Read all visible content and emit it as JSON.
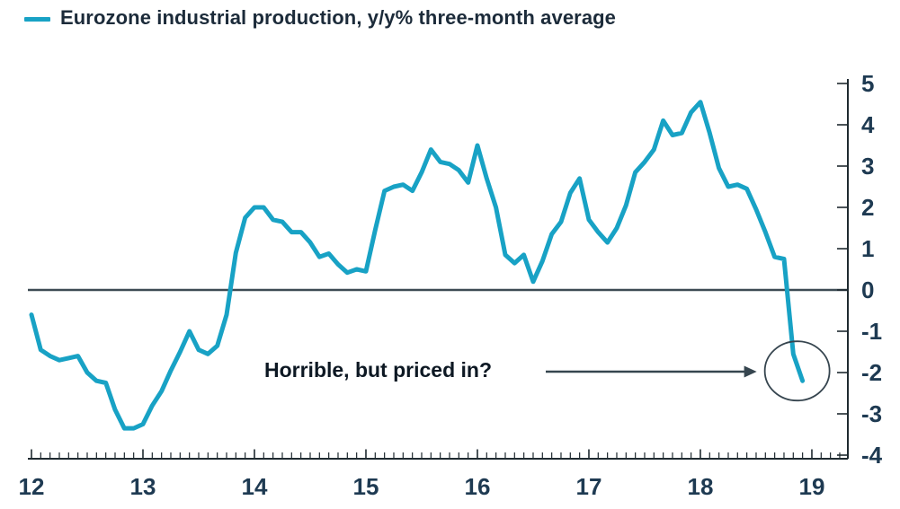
{
  "legend": {
    "label": "Eurozone industrial production, y/y% three-month average",
    "series_color": "#18a2c5"
  },
  "annotation": {
    "text": "Horrible, but priced in?"
  },
  "colors": {
    "series": "#18a2c5",
    "axis": "#1f2a30",
    "zero_line": "#3d4b54",
    "arrow_and_circle": "#36454f",
    "tick_label": "#1e3a52",
    "title_text": "#1c2b3a"
  },
  "chart_data": {
    "type": "line",
    "title": "Eurozone industrial production, y/y% three-month average",
    "xlabel": "",
    "ylabel": "",
    "x_unit": "monthly",
    "x_range": [
      "2012-01",
      "2018-12"
    ],
    "x_tick_labels": [
      "12",
      "13",
      "14",
      "15",
      "16",
      "17",
      "18",
      "19"
    ],
    "y_ticks": [
      5,
      4,
      3,
      2,
      1,
      0,
      -1,
      -2,
      -3,
      -4
    ],
    "ylim": [
      -4,
      5
    ],
    "y_axis_side": "right",
    "grid": false,
    "zero_line": true,
    "legend_position": "top-left",
    "annotation": {
      "text": "Horrible, but priced in?",
      "points_to": "last data point",
      "last_point_circled": true
    },
    "series": [
      {
        "name": "Eurozone industrial production, y/y% three-month average",
        "color": "#18a2c5",
        "start": "2012-01",
        "values": [
          -0.6,
          -1.45,
          -1.6,
          -1.7,
          -1.65,
          -1.6,
          -2.0,
          -2.2,
          -2.25,
          -2.9,
          -3.35,
          -3.35,
          -3.25,
          -2.8,
          -2.45,
          -1.95,
          -1.5,
          -1.0,
          -1.45,
          -1.55,
          -1.35,
          -0.6,
          0.9,
          1.75,
          2.0,
          2.0,
          1.7,
          1.65,
          1.4,
          1.4,
          1.15,
          0.8,
          0.88,
          0.62,
          0.42,
          0.5,
          0.45,
          1.45,
          2.4,
          2.5,
          2.55,
          2.4,
          2.85,
          3.4,
          3.1,
          3.05,
          2.9,
          2.6,
          3.5,
          2.7,
          2.0,
          0.85,
          0.65,
          0.85,
          0.2,
          0.7,
          1.35,
          1.65,
          2.35,
          2.7,
          1.7,
          1.4,
          1.15,
          1.5,
          2.05,
          2.85,
          3.1,
          3.4,
          4.1,
          3.75,
          3.8,
          4.3,
          4.55,
          3.8,
          2.95,
          2.5,
          2.55,
          2.45,
          1.95,
          1.4,
          0.8,
          0.75,
          -1.55,
          -2.2
        ]
      }
    ]
  }
}
